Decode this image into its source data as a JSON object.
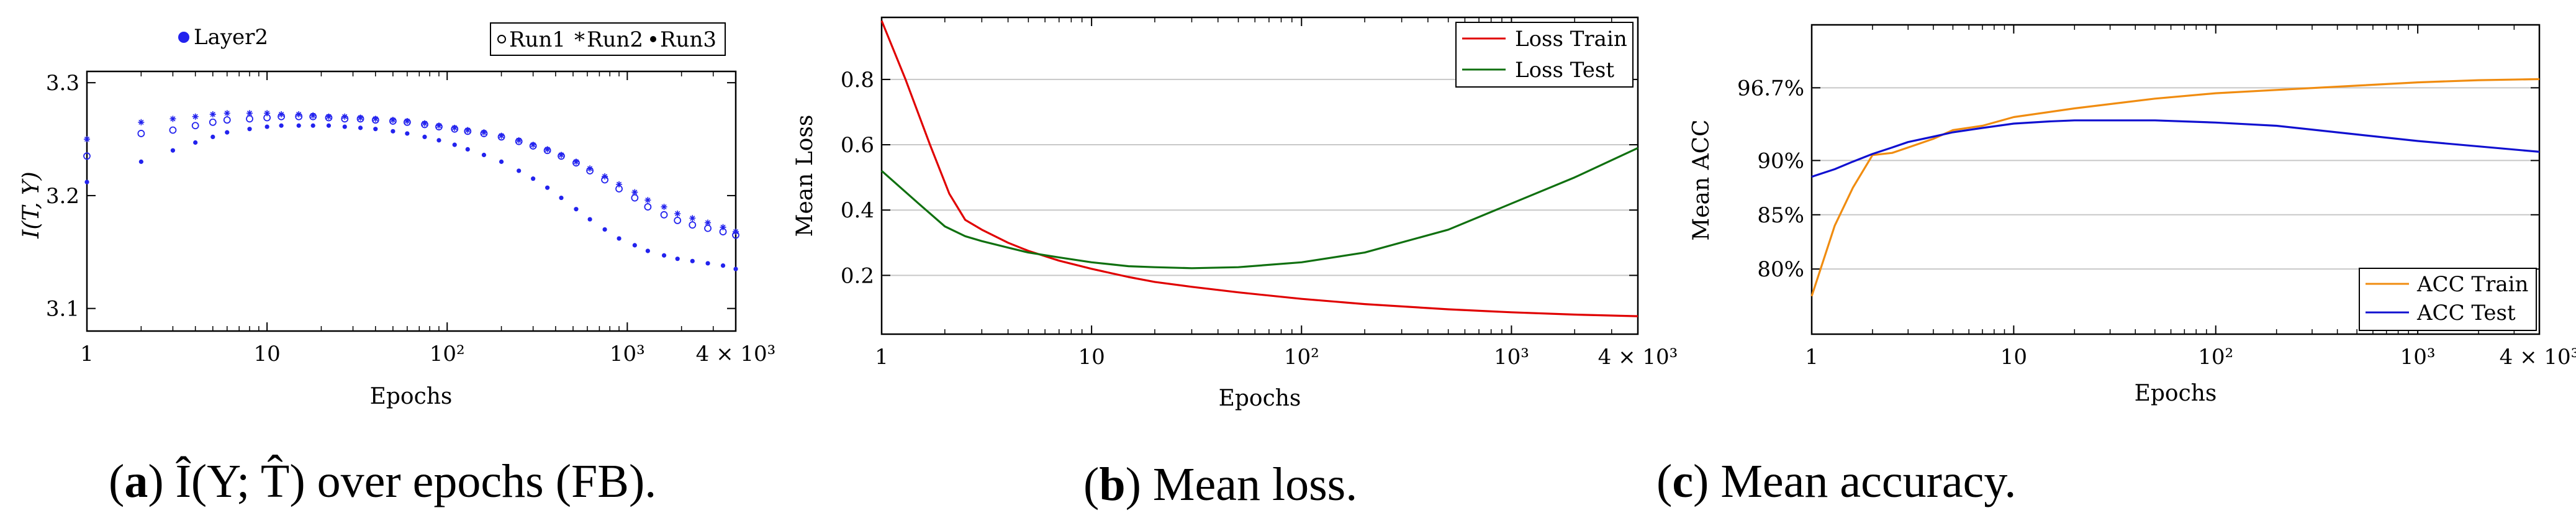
{
  "chart_data": [
    {
      "id": "a",
      "type": "scatter",
      "xscale": "log",
      "xlim": [
        1,
        4000
      ],
      "ylim": [
        3.08,
        3.31
      ],
      "xticks": [
        {
          "v": 1,
          "label": "1"
        },
        {
          "v": 10,
          "label": "10"
        },
        {
          "v": 100,
          "label": "10²"
        },
        {
          "v": 1000,
          "label": "10³"
        },
        {
          "v": 4000,
          "label": "4 × 10³"
        }
      ],
      "yticks": [
        {
          "v": 3.1,
          "label": "3.1"
        },
        {
          "v": 3.2,
          "label": "3.2"
        },
        {
          "v": 3.3,
          "label": "3.3"
        }
      ],
      "xlabel": "Epochs",
      "ylabel": "I(T, Y)",
      "layer_label": "Layer2",
      "legend": [
        "Run1",
        "Run2",
        "Run3"
      ],
      "color": "#2222ee",
      "series": [
        {
          "name": "Run1",
          "marker": "circle",
          "x": [
            1,
            2,
            3,
            4,
            5,
            6,
            8,
            10,
            12,
            15,
            18,
            22,
            27,
            33,
            40,
            50,
            60,
            75,
            90,
            110,
            130,
            160,
            200,
            250,
            300,
            360,
            430,
            520,
            620,
            750,
            900,
            1100,
            1300,
            1600,
            1900,
            2300,
            2800,
            3400,
            4000
          ],
          "y": [
            3.235,
            3.255,
            3.258,
            3.262,
            3.265,
            3.267,
            3.268,
            3.269,
            3.27,
            3.27,
            3.27,
            3.269,
            3.268,
            3.268,
            3.267,
            3.266,
            3.265,
            3.263,
            3.261,
            3.259,
            3.257,
            3.255,
            3.252,
            3.248,
            3.244,
            3.24,
            3.235,
            3.229,
            3.222,
            3.214,
            3.206,
            3.198,
            3.19,
            3.183,
            3.178,
            3.174,
            3.171,
            3.168,
            3.165
          ]
        },
        {
          "name": "Run2",
          "marker": "star",
          "x": [
            1,
            2,
            3,
            4,
            5,
            6,
            8,
            10,
            12,
            15,
            18,
            22,
            27,
            33,
            40,
            50,
            60,
            75,
            90,
            110,
            130,
            160,
            200,
            250,
            300,
            360,
            430,
            520,
            620,
            750,
            900,
            1100,
            1300,
            1600,
            1900,
            2300,
            2800,
            3400,
            4000
          ],
          "y": [
            3.25,
            3.265,
            3.268,
            3.27,
            3.272,
            3.273,
            3.273,
            3.273,
            3.272,
            3.272,
            3.271,
            3.27,
            3.27,
            3.269,
            3.268,
            3.267,
            3.266,
            3.264,
            3.262,
            3.26,
            3.258,
            3.256,
            3.253,
            3.249,
            3.245,
            3.241,
            3.236,
            3.23,
            3.224,
            3.217,
            3.21,
            3.203,
            3.196,
            3.19,
            3.184,
            3.18,
            3.176,
            3.172,
            3.168
          ]
        },
        {
          "name": "Run3",
          "marker": "dot",
          "x": [
            1,
            2,
            3,
            4,
            5,
            6,
            8,
            10,
            12,
            15,
            18,
            22,
            27,
            33,
            40,
            50,
            60,
            75,
            90,
            110,
            130,
            160,
            200,
            250,
            300,
            360,
            430,
            520,
            620,
            750,
            900,
            1100,
            1300,
            1600,
            1900,
            2300,
            2800,
            3400,
            4000
          ],
          "y": [
            3.212,
            3.23,
            3.24,
            3.247,
            3.252,
            3.256,
            3.259,
            3.261,
            3.262,
            3.262,
            3.262,
            3.262,
            3.261,
            3.26,
            3.259,
            3.257,
            3.255,
            3.252,
            3.249,
            3.245,
            3.241,
            3.236,
            3.23,
            3.222,
            3.215,
            3.207,
            3.198,
            3.188,
            3.179,
            3.17,
            3.162,
            3.156,
            3.151,
            3.147,
            3.144,
            3.142,
            3.14,
            3.138,
            3.135
          ]
        }
      ],
      "caption": {
        "letter": "a",
        "text": "Î(Y; T̂) over epochs (FB)."
      }
    },
    {
      "id": "b",
      "type": "line",
      "xscale": "log",
      "xlim": [
        1,
        4000
      ],
      "ylim": [
        0.02,
        0.99
      ],
      "xticks": [
        {
          "v": 1,
          "label": "1"
        },
        {
          "v": 10,
          "label": "10"
        },
        {
          "v": 100,
          "label": "10²"
        },
        {
          "v": 1000,
          "label": "10³"
        },
        {
          "v": 4000,
          "label": "4 × 10³"
        }
      ],
      "yticks": [
        {
          "v": 0.2,
          "label": "0.2"
        },
        {
          "v": 0.4,
          "label": "0.4"
        },
        {
          "v": 0.6,
          "label": "0.6"
        },
        {
          "v": 0.8,
          "label": "0.8"
        }
      ],
      "xlabel": "Epochs",
      "ylabel": "Mean Loss",
      "series": [
        {
          "name": "Loss Train",
          "color": "#e00000",
          "x": [
            1,
            1.3,
            1.7,
            2.1,
            2.5,
            3,
            4,
            5,
            7,
            10,
            15,
            20,
            30,
            50,
            100,
            200,
            500,
            1000,
            2000,
            4000
          ],
          "y": [
            0.98,
            0.8,
            0.6,
            0.45,
            0.37,
            0.34,
            0.3,
            0.275,
            0.245,
            0.22,
            0.195,
            0.18,
            0.165,
            0.148,
            0.128,
            0.112,
            0.096,
            0.087,
            0.08,
            0.075
          ]
        },
        {
          "name": "Loss Test",
          "color": "#107010",
          "x": [
            1,
            1.5,
            2,
            2.5,
            3,
            4,
            5,
            7,
            10,
            15,
            20,
            30,
            50,
            100,
            200,
            500,
            1000,
            2000,
            4000
          ],
          "y": [
            0.52,
            0.42,
            0.35,
            0.32,
            0.305,
            0.285,
            0.27,
            0.255,
            0.24,
            0.228,
            0.225,
            0.222,
            0.225,
            0.24,
            0.27,
            0.34,
            0.42,
            0.5,
            0.59
          ]
        }
      ],
      "caption": {
        "letter": "b",
        "text": "Mean loss."
      }
    },
    {
      "id": "c",
      "type": "line",
      "xscale": "log",
      "xlim": [
        1,
        4000
      ],
      "ylim": [
        0.74,
        1.025
      ],
      "xticks": [
        {
          "v": 1,
          "label": "1"
        },
        {
          "v": 10,
          "label": "10"
        },
        {
          "v": 100,
          "label": "10²"
        },
        {
          "v": 1000,
          "label": "10³"
        },
        {
          "v": 4000,
          "label": "4 × 10³"
        }
      ],
      "yticks": [
        {
          "v": 0.8,
          "label": "80%"
        },
        {
          "v": 0.85,
          "label": "85%"
        },
        {
          "v": 0.9,
          "label": "90%"
        },
        {
          "v": 0.967,
          "label": "96.7%"
        }
      ],
      "xlabel": "Epochs",
      "ylabel": "Mean ACC",
      "series": [
        {
          "name": "ACC Train",
          "color": "#f08c10",
          "x": [
            1,
            1.3,
            1.6,
            2,
            2.5,
            3,
            4,
            5,
            7,
            10,
            20,
            50,
            100,
            200,
            500,
            1000,
            2000,
            4000
          ],
          "y": [
            0.775,
            0.84,
            0.875,
            0.905,
            0.907,
            0.912,
            0.92,
            0.928,
            0.932,
            0.94,
            0.948,
            0.957,
            0.962,
            0.965,
            0.969,
            0.972,
            0.974,
            0.975
          ]
        },
        {
          "name": "ACC Test",
          "color": "#1010d0",
          "x": [
            1,
            1.3,
            1.6,
            2,
            2.5,
            3,
            4,
            5,
            7,
            10,
            15,
            20,
            30,
            50,
            70,
            100,
            200,
            500,
            1000,
            2000,
            4000
          ],
          "y": [
            0.885,
            0.892,
            0.899,
            0.906,
            0.912,
            0.917,
            0.922,
            0.926,
            0.93,
            0.934,
            0.936,
            0.937,
            0.937,
            0.937,
            0.936,
            0.935,
            0.932,
            0.924,
            0.918,
            0.913,
            0.908
          ]
        }
      ],
      "caption": {
        "letter": "c",
        "text": "Mean accuracy."
      }
    }
  ]
}
